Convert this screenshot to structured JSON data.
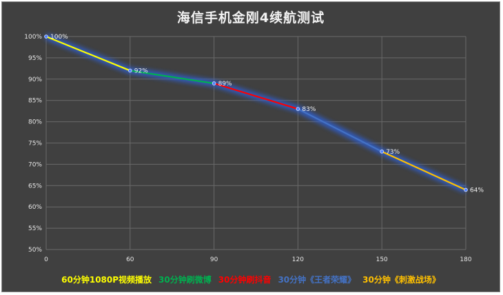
{
  "chart_data": {
    "type": "line",
    "title": "海信手机金刚4续航测试",
    "x": [
      0,
      60,
      90,
      120,
      150,
      180
    ],
    "y": [
      100,
      92,
      89,
      83,
      73,
      64
    ],
    "data_labels": [
      "100%",
      "92%",
      "89%",
      "83%",
      "73%",
      "64%"
    ],
    "x_ticks": [
      "0",
      "60",
      "90",
      "120",
      "150",
      "180"
    ],
    "y_ticks": [
      "50%",
      "55%",
      "60%",
      "65%",
      "70%",
      "75%",
      "80%",
      "85%",
      "90%",
      "95%",
      "100%"
    ],
    "ylim": [
      50,
      100
    ],
    "grid": true,
    "legend_position": "bottom",
    "segments": [
      {
        "name": "60分钟1080P视频播放",
        "from": 0,
        "to": 60,
        "color": "#ffff00"
      },
      {
        "name": "30分钟刷微博",
        "from": 60,
        "to": 90,
        "color": "#00b050"
      },
      {
        "name": "30分钟刷抖音",
        "from": 90,
        "to": 120,
        "color": "#ff0000"
      },
      {
        "name": "30分钟《王者荣耀》",
        "from": 120,
        "to": 150,
        "color": "#4472c4"
      },
      {
        "name": "30分钟《刺激战场》",
        "from": 150,
        "to": 180,
        "color": "#ffc000"
      }
    ],
    "colors": {
      "background": "#404040",
      "grid": "#6a6a6a",
      "glow": "#2f5fd0",
      "marker": "#4f81ff"
    }
  }
}
